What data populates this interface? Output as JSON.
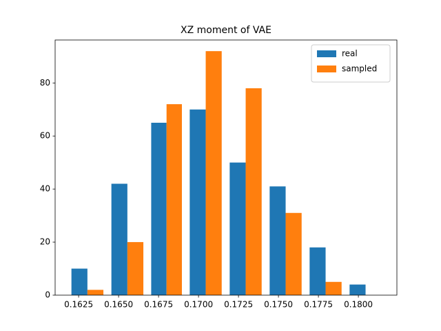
{
  "chart_data": {
    "type": "histogram",
    "title": "XZ moment of VAE",
    "bins": [
      0.1618,
      0.1643,
      0.1668,
      0.1692,
      0.1717,
      0.1742,
      0.1767,
      0.1792,
      0.1817
    ],
    "series": [
      {
        "name": "real",
        "color": "#1f77b4",
        "values": [
          10,
          42,
          65,
          70,
          50,
          41,
          18,
          4
        ]
      },
      {
        "name": "sampled",
        "color": "#ff7f0e",
        "values": [
          2,
          20,
          72,
          92,
          78,
          31,
          5,
          0
        ]
      }
    ],
    "xlim": [
      0.16103,
      0.18241
    ],
    "xticks": [
      0.1625,
      {
        "value": 0.165,
        "label": "0.1650"
      },
      0.1675,
      {
        "value": 0.17,
        "label": "0.1700"
      },
      0.1725,
      {
        "value": 0.175,
        "label": "0.1750"
      },
      0.1775,
      {
        "value": 0.18,
        "label": "0.1800"
      }
    ],
    "ylim": [
      0,
      96.2
    ],
    "yticks": [
      0,
      20,
      40,
      60,
      80
    ],
    "legend": "upper right"
  }
}
